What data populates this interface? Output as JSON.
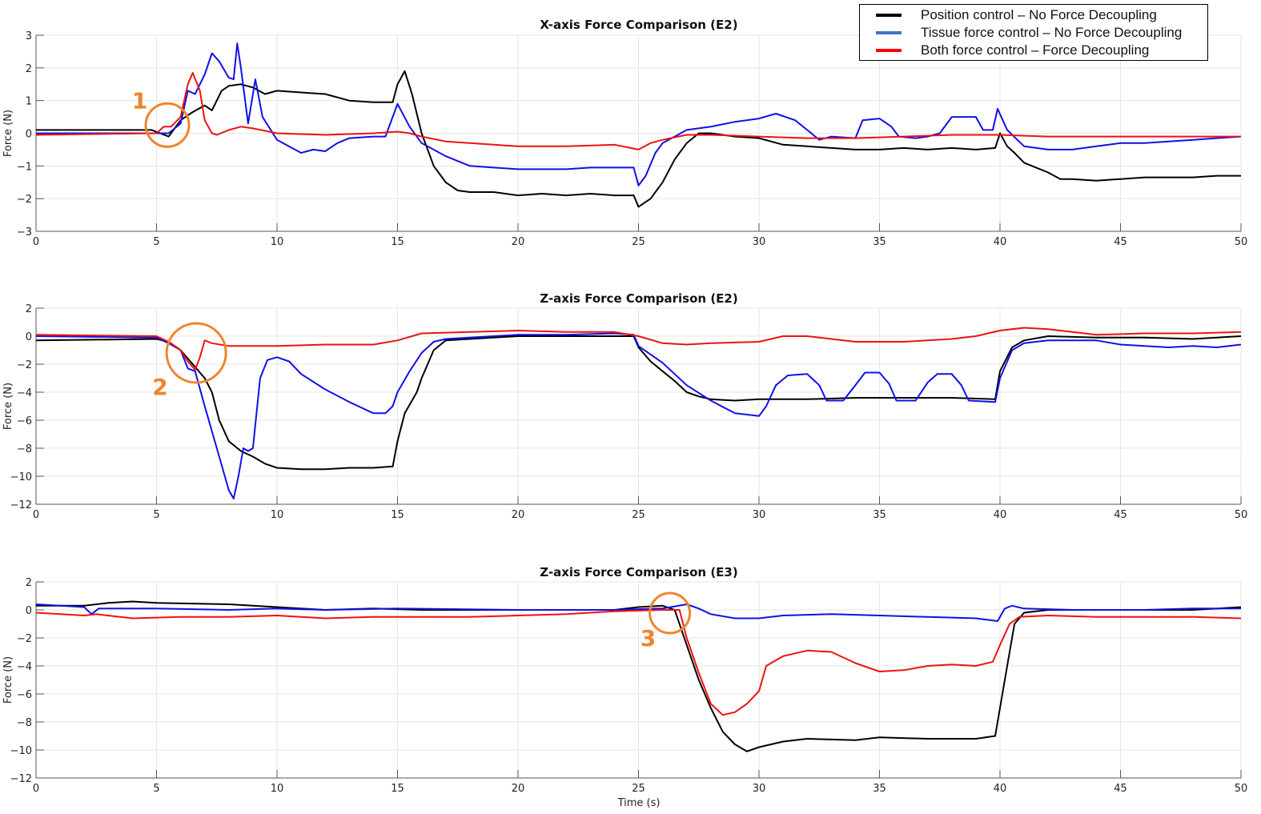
{
  "chart_data": [
    {
      "type": "line",
      "title": "X-axis Force Comparison (E2)",
      "xlabel": "",
      "ylabel": "Force (N)",
      "xlim": [
        0,
        50
      ],
      "ylim": [
        -3,
        3
      ],
      "xticks": [
        0,
        5,
        10,
        15,
        20,
        25,
        30,
        35,
        40,
        45,
        50
      ],
      "yticks": [
        -3,
        -2,
        -1,
        0,
        1,
        2,
        3
      ],
      "grid": true,
      "series": [
        {
          "name": "Position control – No Force Decoupling",
          "color": "#000000",
          "x": [
            0,
            4.8,
            5.5,
            6,
            6.5,
            7,
            7.3,
            7.7,
            8,
            8.5,
            9,
            9.5,
            10,
            11,
            12,
            13,
            14,
            14.8,
            15,
            15.3,
            15.6,
            16,
            16.5,
            17,
            17.5,
            18,
            19,
            20,
            21,
            22,
            23,
            24,
            24.8,
            25,
            25.5,
            26,
            26.5,
            27,
            27.5,
            28,
            29,
            30,
            31,
            32,
            33,
            34,
            35,
            36,
            37,
            38,
            39,
            39.8,
            40,
            40.3,
            40.6,
            41,
            41.5,
            42,
            42.5,
            43,
            44,
            45,
            46,
            47,
            48,
            49,
            50
          ],
          "y": [
            0.1,
            0.1,
            -0.1,
            0.4,
            0.65,
            0.85,
            0.7,
            1.3,
            1.45,
            1.5,
            1.4,
            1.2,
            1.3,
            1.25,
            1.2,
            1.0,
            0.95,
            0.95,
            1.5,
            1.9,
            1.2,
            0,
            -1.0,
            -1.5,
            -1.75,
            -1.8,
            -1.8,
            -1.9,
            -1.85,
            -1.9,
            -1.85,
            -1.9,
            -1.9,
            -2.25,
            -2.0,
            -1.5,
            -0.8,
            -0.3,
            0,
            0,
            -0.1,
            -0.15,
            -0.35,
            -0.4,
            -0.45,
            -0.5,
            -0.5,
            -0.45,
            -0.5,
            -0.45,
            -0.5,
            -0.45,
            0,
            -0.4,
            -0.6,
            -0.9,
            -1.05,
            -1.2,
            -1.4,
            -1.4,
            -1.45,
            -1.4,
            -1.35,
            -1.35,
            -1.35,
            -1.3,
            -1.3
          ]
        },
        {
          "name": "Tissue force control – No Force Decoupling",
          "color": "#1010e8",
          "x": [
            0,
            5,
            5.5,
            6,
            6.3,
            6.6,
            7,
            7.3,
            7.6,
            8,
            8.2,
            8.35,
            8.5,
            8.8,
            9.1,
            9.4,
            10,
            11,
            11.5,
            12,
            12.5,
            13,
            14,
            14.5,
            15,
            15.5,
            16,
            17,
            18,
            19,
            20,
            21,
            22,
            23,
            24,
            24.8,
            25,
            25.3,
            25.7,
            26,
            26.5,
            27,
            28,
            29,
            30,
            30.7,
            31.5,
            32,
            32.5,
            33,
            34,
            34.3,
            35,
            35.5,
            35.8,
            36.5,
            37,
            37.5,
            38,
            39,
            39.3,
            39.7,
            39.9,
            40.3,
            41,
            42,
            43,
            44,
            45,
            46,
            47,
            48,
            49,
            50
          ],
          "y": [
            0,
            0,
            0,
            0.3,
            1.3,
            1.2,
            1.8,
            2.45,
            2.2,
            1.7,
            1.65,
            2.75,
            2.0,
            0.3,
            1.65,
            0.5,
            -0.2,
            -0.6,
            -0.5,
            -0.55,
            -0.3,
            -0.15,
            -0.1,
            -0.1,
            0.9,
            0.2,
            -0.3,
            -0.7,
            -1.0,
            -1.05,
            -1.1,
            -1.1,
            -1.1,
            -1.05,
            -1.05,
            -1.05,
            -1.6,
            -1.3,
            -0.6,
            -0.3,
            -0.1,
            0.1,
            0.2,
            0.35,
            0.45,
            0.6,
            0.4,
            0.1,
            -0.2,
            -0.1,
            -0.15,
            0.4,
            0.45,
            0.2,
            -0.1,
            -0.15,
            -0.1,
            0.0,
            0.5,
            0.5,
            0.1,
            0.1,
            0.75,
            0.1,
            -0.4,
            -0.5,
            -0.5,
            -0.4,
            -0.3,
            -0.3,
            -0.25,
            -0.2,
            -0.15,
            -0.1
          ]
        },
        {
          "name": "Both force control – Force Decoupling",
          "color": "#ee1111",
          "x": [
            0,
            5,
            5.3,
            5.6,
            6,
            6.3,
            6.5,
            6.8,
            7,
            7.3,
            7.5,
            8,
            8.5,
            9,
            10,
            12,
            14,
            15,
            15.5,
            16,
            17,
            18,
            19,
            20,
            22,
            24,
            25,
            25.5,
            26,
            27,
            28,
            30,
            32,
            34,
            36,
            38,
            40,
            42,
            44,
            46,
            48,
            50
          ],
          "y": [
            -0.05,
            0,
            0.2,
            0.2,
            0.5,
            1.5,
            1.85,
            1.3,
            0.4,
            0,
            -0.05,
            0.1,
            0.2,
            0.15,
            0,
            -0.05,
            0,
            0.05,
            0,
            -0.1,
            -0.25,
            -0.3,
            -0.35,
            -0.4,
            -0.4,
            -0.35,
            -0.5,
            -0.3,
            -0.2,
            -0.05,
            -0.05,
            -0.1,
            -0.15,
            -0.15,
            -0.1,
            -0.05,
            -0.05,
            -0.1,
            -0.1,
            -0.1,
            -0.1,
            -0.1
          ]
        }
      ],
      "annotations": [
        {
          "label": "1",
          "x": 5.45,
          "y": 0.25,
          "label_x": 4.3,
          "label_y": 1.0
        }
      ]
    },
    {
      "type": "line",
      "title": "Z-axis Force Comparison (E2)",
      "xlabel": "",
      "ylabel": "Force (N)",
      "xlim": [
        0,
        50
      ],
      "ylim": [
        -12,
        2
      ],
      "xticks": [
        0,
        5,
        10,
        15,
        20,
        25,
        30,
        35,
        40,
        45,
        50
      ],
      "yticks": [
        -12,
        -10,
        -8,
        -6,
        -4,
        -2,
        0,
        2
      ],
      "grid": true,
      "series": [
        {
          "name": "Position control – No Force Decoupling",
          "color": "#000000",
          "x": [
            0,
            5,
            5.5,
            6,
            6.5,
            7,
            7.3,
            7.6,
            8,
            8.5,
            9,
            9.5,
            10,
            11,
            12,
            13,
            14,
            14.8,
            15,
            15.3,
            15.8,
            16,
            16.5,
            17,
            18,
            20,
            22,
            24,
            24.8,
            25,
            25.5,
            26,
            26.5,
            27,
            27.5,
            28,
            29,
            30,
            32,
            34,
            36,
            38,
            39.8,
            40,
            40.5,
            41,
            42,
            44,
            46,
            48,
            50
          ],
          "y": [
            -0.3,
            -0.2,
            -0.4,
            -1,
            -2,
            -3,
            -4,
            -6,
            -7.5,
            -8.2,
            -8.6,
            -9.1,
            -9.4,
            -9.5,
            -9.5,
            -9.4,
            -9.4,
            -9.3,
            -7.5,
            -5.5,
            -4,
            -3,
            -1,
            -0.3,
            -0.2,
            0,
            0,
            0,
            0,
            -0.8,
            -1.8,
            -2.5,
            -3.2,
            -4,
            -4.3,
            -4.5,
            -4.6,
            -4.5,
            -4.5,
            -4.4,
            -4.4,
            -4.4,
            -4.5,
            -2.5,
            -0.8,
            -0.3,
            0,
            -0.1,
            -0.1,
            -0.2,
            0
          ]
        },
        {
          "name": "Tissue force control – No Force Decoupling",
          "color": "#1010e8",
          "x": [
            0,
            5,
            5.5,
            6,
            6.3,
            6.6,
            7,
            7.5,
            8,
            8.2,
            8.4,
            8.6,
            8.8,
            9,
            9.3,
            9.6,
            10,
            10.5,
            11,
            12,
            13,
            14,
            14.5,
            14.8,
            15,
            15.5,
            16,
            16.5,
            17,
            20,
            22,
            24,
            24.8,
            25,
            26,
            27,
            28,
            29,
            30,
            30.3,
            30.7,
            31.2,
            32,
            32.5,
            32.8,
            33.5,
            34,
            34.4,
            35,
            35.4,
            35.7,
            36.5,
            37,
            37.4,
            38,
            38.4,
            38.7,
            39.8,
            40,
            40.5,
            41,
            42,
            44,
            45,
            46,
            47,
            48,
            49,
            50
          ],
          "y": [
            0,
            -0.1,
            -0.5,
            -1,
            -2.3,
            -2.5,
            -5,
            -8,
            -11,
            -11.6,
            -10,
            -8,
            -8.2,
            -8,
            -3,
            -1.7,
            -1.5,
            -1.8,
            -2.7,
            -3.8,
            -4.7,
            -5.5,
            -5.5,
            -5,
            -4,
            -2.5,
            -1.2,
            -0.4,
            -0.2,
            0.1,
            0.1,
            0.2,
            0.1,
            -0.7,
            -1.9,
            -3.5,
            -4.6,
            -5.5,
            -5.7,
            -5,
            -3.5,
            -2.8,
            -2.7,
            -3.5,
            -4.6,
            -4.6,
            -3.5,
            -2.6,
            -2.6,
            -3.4,
            -4.6,
            -4.6,
            -3.3,
            -2.7,
            -2.7,
            -3.5,
            -4.6,
            -4.7,
            -3,
            -1,
            -0.5,
            -0.3,
            -0.3,
            -0.6,
            -0.7,
            -0.8,
            -0.7,
            -0.8,
            -0.6
          ]
        },
        {
          "name": "Both force control – Force Decoupling",
          "color": "#ee1111",
          "x": [
            0,
            5,
            5.5,
            6,
            6.3,
            6.6,
            6.8,
            7,
            7.3,
            8,
            10,
            12,
            14,
            15,
            16,
            18,
            20,
            22,
            24,
            25,
            26,
            27,
            28,
            30,
            31,
            32,
            33,
            34,
            36,
            38,
            39,
            40,
            41,
            42,
            44,
            46,
            48,
            50
          ],
          "y": [
            0.1,
            0,
            -0.4,
            -1,
            -1.8,
            -2.4,
            -1.5,
            -0.3,
            -0.5,
            -0.7,
            -0.7,
            -0.6,
            -0.6,
            -0.3,
            0.2,
            0.3,
            0.4,
            0.3,
            0.3,
            0,
            -0.5,
            -0.6,
            -0.5,
            -0.4,
            0,
            0,
            -0.2,
            -0.4,
            -0.4,
            -0.2,
            0,
            0.4,
            0.6,
            0.5,
            0.1,
            0.2,
            0.2,
            0.3
          ]
        }
      ],
      "annotations": [
        {
          "label": "2",
          "x": 6.65,
          "y": -1.2,
          "label_x": 5.15,
          "label_y": -3.6
        }
      ]
    },
    {
      "type": "line",
      "title": "Z-axis Force Comparison (E3)",
      "xlabel": "Time (s)",
      "ylabel": "Force (N)",
      "xlim": [
        0,
        50
      ],
      "ylim": [
        -12,
        2
      ],
      "xticks": [
        0,
        5,
        10,
        15,
        20,
        25,
        30,
        35,
        40,
        45,
        50
      ],
      "yticks": [
        -12,
        -10,
        -8,
        -6,
        -4,
        -2,
        0,
        2
      ],
      "grid": true,
      "series": [
        {
          "name": "Position control – No Force Decoupling",
          "color": "#000000",
          "x": [
            0,
            2,
            3,
            4,
            5,
            8,
            9,
            10,
            12,
            14,
            16,
            20,
            24,
            25,
            26,
            26.5,
            27,
            27.5,
            28,
            28.5,
            29,
            29.5,
            30,
            31,
            32,
            34,
            35,
            37,
            39,
            39.8,
            40,
            40.3,
            40.6,
            41,
            42,
            44,
            46,
            48,
            50
          ],
          "y": [
            0.3,
            0.3,
            0.5,
            0.6,
            0.5,
            0.4,
            0.3,
            0.2,
            0,
            0.1,
            0,
            0,
            0,
            0.2,
            0.3,
            0,
            -2.5,
            -5,
            -7,
            -8.7,
            -9.6,
            -10.1,
            -9.8,
            -9.4,
            -9.2,
            -9.3,
            -9.1,
            -9.2,
            -9.2,
            -9,
            -7,
            -4,
            -1,
            -0.2,
            0,
            0,
            0,
            0,
            0.2
          ]
        },
        {
          "name": "Tissue force control – No Force Decoupling",
          "color": "#1010e8",
          "x": [
            0,
            2,
            2.3,
            2.6,
            5,
            8,
            10,
            12,
            15,
            20,
            24,
            26,
            27,
            27.5,
            28,
            29,
            30,
            31,
            33,
            35,
            37,
            39,
            39.9,
            40.2,
            40.5,
            41,
            43,
            46,
            48,
            50
          ],
          "y": [
            0.4,
            0.2,
            -0.3,
            0.1,
            0.1,
            0,
            0.1,
            0,
            0.1,
            0,
            0,
            0.1,
            0.4,
            0.1,
            -0.3,
            -0.6,
            -0.6,
            -0.4,
            -0.3,
            -0.4,
            -0.5,
            -0.6,
            -0.8,
            0.1,
            0.3,
            0.1,
            0,
            0,
            0.1,
            0.1
          ]
        },
        {
          "name": "Both force control – Force Decoupling",
          "color": "#ee1111",
          "x": [
            0,
            2,
            2.5,
            4,
            6,
            8,
            10,
            12,
            14,
            16,
            18,
            20,
            22,
            24,
            26,
            26.7,
            27,
            27.5,
            28,
            28.5,
            29,
            29.5,
            30,
            30.3,
            31,
            32,
            33,
            34,
            35,
            36,
            37,
            38,
            39,
            39.7,
            40,
            40.4,
            40.8,
            42,
            44,
            46,
            48,
            50
          ],
          "y": [
            -0.2,
            -0.4,
            -0.3,
            -0.6,
            -0.5,
            -0.5,
            -0.4,
            -0.6,
            -0.5,
            -0.5,
            -0.5,
            -0.4,
            -0.3,
            -0.1,
            0,
            0,
            -2,
            -4.5,
            -6.7,
            -7.5,
            -7.3,
            -6.7,
            -5.8,
            -4,
            -3.3,
            -2.9,
            -3,
            -3.8,
            -4.4,
            -4.3,
            -4,
            -3.9,
            -4,
            -3.7,
            -2.5,
            -1,
            -0.5,
            -0.4,
            -0.5,
            -0.5,
            -0.5,
            -0.6
          ]
        }
      ],
      "annotations": [
        {
          "label": "3",
          "x": 26.3,
          "y": -0.23,
          "label_x": 25.4,
          "label_y": -2.0
        }
      ]
    }
  ],
  "legend": {
    "position": "top-right",
    "items": [
      {
        "label": "Position control – No Force Decoupling",
        "color": "#000000"
      },
      {
        "label": "Tissue force control – No Force Decoupling",
        "color": "#4472c4"
      },
      {
        "label": "Both force control – Force Decoupling",
        "color": "#ff0000"
      }
    ]
  },
  "annotation_color": "#f0842c"
}
